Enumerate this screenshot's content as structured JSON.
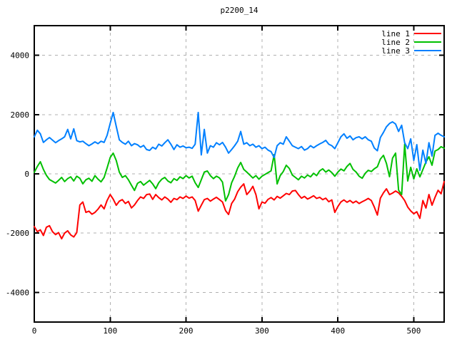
{
  "chart_data": {
    "type": "line",
    "title": "p2200_14",
    "xlabel": "",
    "ylabel": "",
    "xlim": [
      0,
      540
    ],
    "ylim": [
      -5000,
      5000
    ],
    "x_ticks": [
      0,
      100,
      200,
      300,
      400,
      500
    ],
    "y_ticks": [
      -4000,
      -2000,
      0,
      2000,
      4000
    ],
    "grid": true,
    "grid_color": "#b0b0b0",
    "border_color": "#000000",
    "background_color": "#ffffff",
    "legend_position": "top-right-inside",
    "x_step": 4,
    "series": [
      {
        "name": "line 1",
        "color": "#ff0000",
        "values": [
          -1780,
          -1950,
          -1890,
          -2080,
          -1800,
          -1750,
          -1950,
          -2050,
          -1980,
          -2190,
          -2000,
          -1920,
          -2060,
          -2130,
          -1980,
          -1050,
          -950,
          -1300,
          -1260,
          -1360,
          -1300,
          -1190,
          -1050,
          -1180,
          -900,
          -700,
          -850,
          -1060,
          -920,
          -870,
          -1000,
          -930,
          -1150,
          -1050,
          -900,
          -780,
          -830,
          -700,
          -680,
          -860,
          -700,
          -800,
          -880,
          -780,
          -850,
          -960,
          -830,
          -870,
          -780,
          -830,
          -750,
          -820,
          -780,
          -900,
          -1260,
          -1060,
          -870,
          -830,
          -920,
          -850,
          -790,
          -870,
          -950,
          -1240,
          -1370,
          -1000,
          -850,
          -600,
          -450,
          -340,
          -700,
          -580,
          -420,
          -700,
          -1180,
          -950,
          -990,
          -860,
          -800,
          -880,
          -760,
          -820,
          -740,
          -660,
          -700,
          -580,
          -560,
          -700,
          -820,
          -760,
          -850,
          -800,
          -740,
          -830,
          -790,
          -870,
          -820,
          -940,
          -880,
          -1300,
          -1100,
          -950,
          -880,
          -960,
          -900,
          -980,
          -920,
          -1000,
          -940,
          -890,
          -830,
          -900,
          -1120,
          -1390,
          -820,
          -640,
          -505,
          -700,
          -650,
          -580,
          -640,
          -760,
          -900,
          -1120,
          -1250,
          -1346,
          -1280,
          -1500,
          -900,
          -1154,
          -697,
          -1058,
          -793,
          -553,
          -673,
          -264
        ]
      },
      {
        "name": "line 2",
        "color": "#00c000",
        "values": [
          50,
          250,
          409,
          150,
          -50,
          -192,
          -250,
          -310,
          -220,
          -120,
          -260,
          -160,
          -100,
          -240,
          -80,
          -150,
          -336,
          -200,
          -150,
          -250,
          -60,
          -180,
          -270,
          -120,
          200,
          550,
          700,
          450,
          60,
          -120,
          -60,
          -200,
          -385,
          -560,
          -320,
          -260,
          -380,
          -300,
          -220,
          -340,
          -500,
          -300,
          -180,
          -120,
          -240,
          -300,
          -160,
          -220,
          -100,
          -160,
          -60,
          -140,
          -80,
          -300,
          -460,
          -200,
          60,
          96,
          -60,
          -160,
          -80,
          -140,
          -280,
          -913,
          -700,
          -300,
          -80,
          200,
          385,
          150,
          60,
          -40,
          -140,
          -60,
          -180,
          -80,
          -20,
          40,
          100,
          650,
          -340,
          -60,
          80,
          290,
          180,
          -40,
          -120,
          -200,
          -80,
          -140,
          -40,
          -100,
          20,
          -60,
          100,
          170,
          60,
          130,
          40,
          -80,
          60,
          160,
          100,
          250,
          350,
          150,
          60,
          -80,
          -150,
          20,
          120,
          80,
          170,
          240,
          500,
          625,
          350,
          -96,
          530,
          700,
          -550,
          -700,
          1000,
          -240,
          220,
          -170,
          170,
          -100,
          144,
          400,
          577,
          290,
          770,
          820,
          915,
          865
        ]
      },
      {
        "name": "line 3",
        "color": "#0080ff",
        "values": [
          1250,
          1470,
          1350,
          1060,
          1150,
          1225,
          1140,
          1050,
          1120,
          1180,
          1250,
          1500,
          1180,
          1520,
          1120,
          1080,
          1100,
          1020,
          950,
          1010,
          1080,
          1020,
          1100,
          1060,
          1300,
          1700,
          2070,
          1600,
          1150,
          1060,
          1000,
          1100,
          950,
          1020,
          980,
          900,
          960,
          820,
          790,
          900,
          840,
          1000,
          940,
          1050,
          1150,
          1000,
          820,
          980,
          900,
          940,
          880,
          900,
          860,
          1000,
          2070,
          640,
          1500,
          700,
          950,
          900,
          1050,
          980,
          1060,
          900,
          700,
          820,
          950,
          1100,
          1430,
          1000,
          1050,
          950,
          1000,
          900,
          950,
          850,
          900,
          800,
          750,
          550,
          950,
          1050,
          1000,
          1250,
          1100,
          950,
          900,
          850,
          920,
          800,
          850,
          950,
          880,
          950,
          1010,
          1060,
          1130,
          1000,
          950,
          850,
          1050,
          1250,
          1350,
          1200,
          1280,
          1150,
          1220,
          1250,
          1180,
          1250,
          1150,
          1100,
          870,
          780,
          1225,
          1400,
          1590,
          1700,
          1755,
          1680,
          1430,
          1640,
          1050,
          850,
          1180,
          455,
          985,
          120,
          800,
          350,
          1050,
          600,
          1300,
          1370,
          1300,
          1250
        ]
      }
    ]
  }
}
